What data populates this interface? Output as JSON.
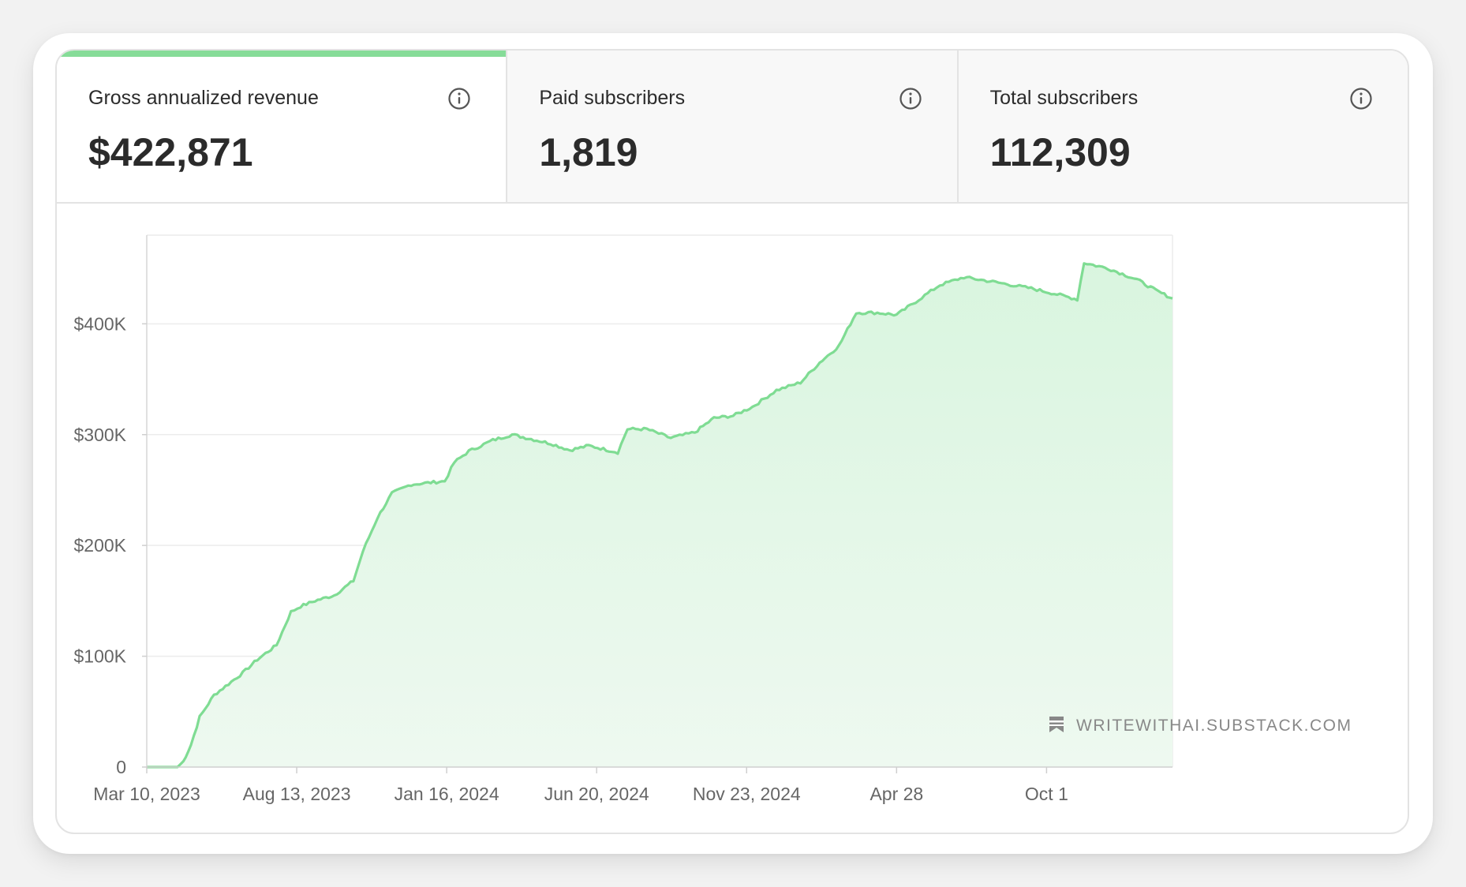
{
  "tabs": [
    {
      "label": "Gross annualized revenue",
      "value": "$422,871",
      "active": true
    },
    {
      "label": "Paid subscribers",
      "value": "1,819",
      "active": false
    },
    {
      "label": "Total subscribers",
      "value": "112,309",
      "active": false
    }
  ],
  "watermark": {
    "text": "WRITEWITHAI.SUBSTACK.COM",
    "icon": "bookmark-icon"
  },
  "colors": {
    "accent": "#86dc98",
    "line": "#7fdc93",
    "fill_top": "#d9f5df",
    "fill_bottom": "#eef9f0",
    "grid": "#ececec"
  },
  "chart_data": {
    "type": "area",
    "title": "",
    "xlabel": "",
    "ylabel": "",
    "x_tick_labels": [
      "Mar 10, 2023",
      "Aug 13, 2023",
      "Jan 16, 2024",
      "Jun 20, 2024",
      "Nov 23, 2024",
      "Apr 28",
      "Oct 1"
    ],
    "y_tick_labels": [
      "0",
      "$100K",
      "$200K",
      "$300K",
      "$400K"
    ],
    "y_tick_values": [
      0,
      100000,
      200000,
      300000,
      400000
    ],
    "ylim": [
      0,
      480000
    ],
    "x_unit_note": "day offsets from Mar 10, 2023",
    "xlim": [
      0,
      1067
    ],
    "x_tick_days": [
      0,
      156,
      312,
      468,
      624,
      780,
      936
    ],
    "grid": true,
    "series": [
      {
        "name": "Gross annualized revenue",
        "points": [
          [
            0,
            0
          ],
          [
            32,
            0
          ],
          [
            38,
            5000
          ],
          [
            46,
            20000
          ],
          [
            55,
            45000
          ],
          [
            70,
            65000
          ],
          [
            85,
            75000
          ],
          [
            100,
            85000
          ],
          [
            115,
            97000
          ],
          [
            135,
            110000
          ],
          [
            150,
            140000
          ],
          [
            160,
            145000
          ],
          [
            175,
            150000
          ],
          [
            195,
            155000
          ],
          [
            215,
            168000
          ],
          [
            225,
            195000
          ],
          [
            240,
            225000
          ],
          [
            255,
            247000
          ],
          [
            275,
            255000
          ],
          [
            310,
            258000
          ],
          [
            320,
            275000
          ],
          [
            335,
            285000
          ],
          [
            360,
            295000
          ],
          [
            380,
            300000
          ],
          [
            400,
            296000
          ],
          [
            420,
            292000
          ],
          [
            440,
            286000
          ],
          [
            460,
            290000
          ],
          [
            490,
            284000
          ],
          [
            500,
            305000
          ],
          [
            520,
            305000
          ],
          [
            545,
            297000
          ],
          [
            570,
            302000
          ],
          [
            590,
            315000
          ],
          [
            610,
            317000
          ],
          [
            630,
            325000
          ],
          [
            655,
            340000
          ],
          [
            680,
            347000
          ],
          [
            700,
            365000
          ],
          [
            720,
            380000
          ],
          [
            738,
            410000
          ],
          [
            760,
            410000
          ],
          [
            780,
            408000
          ],
          [
            800,
            420000
          ],
          [
            825,
            435000
          ],
          [
            850,
            442000
          ],
          [
            880,
            438000
          ],
          [
            920,
            432000
          ],
          [
            950,
            426000
          ],
          [
            968,
            422000
          ],
          [
            975,
            455000
          ],
          [
            1000,
            450000
          ],
          [
            1030,
            440000
          ],
          [
            1050,
            430000
          ],
          [
            1067,
            422871
          ]
        ]
      }
    ]
  }
}
